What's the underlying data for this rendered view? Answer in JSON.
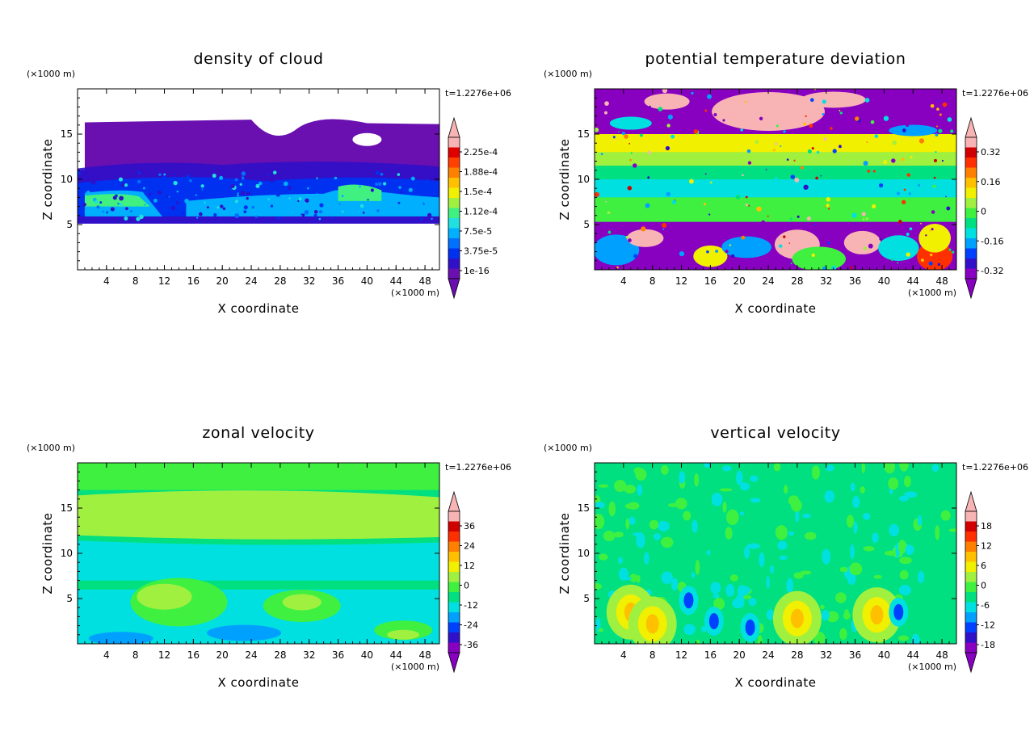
{
  "chart_data": [
    {
      "type": "heatmap",
      "title": "density of cloud",
      "xlabel": "X coordinate",
      "ylabel": "Z coordinate",
      "x_unit": "(×1000 m)",
      "y_unit": "(×1000 m)",
      "time_label": "t=1.2276e+06",
      "xlim": [
        0,
        50
      ],
      "ylim": [
        0,
        20
      ],
      "x_ticks": [
        "4",
        "8",
        "12",
        "16",
        "20",
        "24",
        "28",
        "32",
        "36",
        "40",
        "44",
        "48"
      ],
      "y_ticks": [
        "5",
        "10",
        "15"
      ],
      "colorbar_labels": [
        "1e-16",
        "3.75e-5",
        "7.5e-5",
        "1.12e-4",
        "1.5e-4",
        "1.88e-4",
        "2.25e-4"
      ],
      "colorbar_colors": [
        "#6a0fb0",
        "#3010c8",
        "#0030f0",
        "#0070ff",
        "#00b0ff",
        "#20e0e0",
        "#40f080",
        "#a0f040",
        "#f0f000",
        "#ffc000",
        "#ff8000",
        "#ff4000",
        "#e00000",
        "#f8b4b4"
      ]
    },
    {
      "type": "heatmap",
      "title": "potential temperature deviation",
      "xlabel": "X coordinate",
      "ylabel": "Z coordinate",
      "x_unit": "(×1000 m)",
      "y_unit": "(×1000 m)",
      "time_label": "t=1.2276e+06",
      "xlim": [
        0,
        50
      ],
      "ylim": [
        0,
        20
      ],
      "x_ticks": [
        "4",
        "8",
        "12",
        "16",
        "20",
        "24",
        "28",
        "32",
        "36",
        "40",
        "44",
        "48"
      ],
      "y_ticks": [
        "5",
        "10",
        "15"
      ],
      "colorbar_labels": [
        "-0.32",
        "-0.16",
        "0",
        "0.16",
        "0.32"
      ],
      "colorbar_colors": [
        "#8800c0",
        "#3010c8",
        "#0040ff",
        "#00a0ff",
        "#00e0e0",
        "#00e080",
        "#40f040",
        "#a0f040",
        "#f0f000",
        "#ffc000",
        "#ff8000",
        "#ff3000",
        "#d00000",
        "#f8b4b4"
      ]
    },
    {
      "type": "heatmap",
      "title": "zonal velocity",
      "xlabel": "X coordinate",
      "ylabel": "Z coordinate",
      "x_unit": "(×1000 m)",
      "y_unit": "(×1000 m)",
      "time_label": "t=1.2276e+06",
      "xlim": [
        0,
        50
      ],
      "ylim": [
        0,
        20
      ],
      "x_ticks": [
        "4",
        "8",
        "12",
        "16",
        "20",
        "24",
        "28",
        "32",
        "36",
        "40",
        "44",
        "48"
      ],
      "y_ticks": [
        "5",
        "10",
        "15"
      ],
      "colorbar_labels": [
        "-36",
        "-24",
        "-12",
        "0",
        "12",
        "24",
        "36"
      ],
      "colorbar_colors": [
        "#8800c0",
        "#3010c8",
        "#0040ff",
        "#00a0ff",
        "#00e0e0",
        "#00e080",
        "#40f040",
        "#a0f040",
        "#f0f000",
        "#ffc000",
        "#ff8000",
        "#ff3000",
        "#d00000",
        "#f8b4b4"
      ]
    },
    {
      "type": "heatmap",
      "title": "vertical velocity",
      "xlabel": "X coordinate",
      "ylabel": "Z coordinate",
      "x_unit": "(×1000 m)",
      "y_unit": "(×1000 m)",
      "time_label": "t=1.2276e+06",
      "xlim": [
        0,
        50
      ],
      "ylim": [
        0,
        20
      ],
      "x_ticks": [
        "4",
        "8",
        "12",
        "16",
        "20",
        "24",
        "28",
        "32",
        "36",
        "40",
        "44",
        "48"
      ],
      "y_ticks": [
        "5",
        "10",
        "15"
      ],
      "colorbar_labels": [
        "-18",
        "-12",
        "-6",
        "0",
        "6",
        "12",
        "18"
      ],
      "colorbar_colors": [
        "#8800c0",
        "#3010c8",
        "#0040ff",
        "#00a0ff",
        "#00e0e0",
        "#00e080",
        "#40f040",
        "#a0f040",
        "#f0f000",
        "#ffc000",
        "#ff8000",
        "#ff3000",
        "#d00000",
        "#f8b4b4"
      ]
    }
  ]
}
